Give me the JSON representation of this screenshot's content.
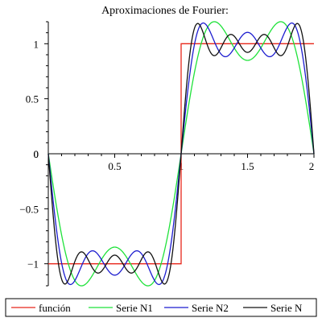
{
  "chart_data": {
    "type": "line",
    "title": "Aproximaciones de Fourier:",
    "xlabel": "",
    "ylabel": "",
    "xlim": [
      0,
      2
    ],
    "ylim": [
      -1.2,
      1.2
    ],
    "x_ticks": [
      {
        "value": 0.5,
        "label": "0.5"
      },
      {
        "value": 1,
        "label": "1"
      },
      {
        "value": 1.5,
        "label": "1.5"
      },
      {
        "value": 2,
        "label": "2"
      }
    ],
    "y_ticks": [
      {
        "value": 1,
        "label": "1"
      },
      {
        "value": 0.5,
        "label": "0.5"
      },
      {
        "value": 0,
        "label": "0"
      },
      {
        "value": -0.5,
        "label": "−0.5"
      },
      {
        "value": -1,
        "label": "−1"
      }
    ],
    "x_origin_label": "0",
    "grid": false,
    "legend_position": "bottom",
    "series": [
      {
        "name": "función",
        "color": "#e8261a",
        "kind": "square_wave",
        "period": 2
      },
      {
        "name": "Serie N1",
        "color": "#1fe23a",
        "kind": "fourier_square",
        "harmonics": [
          1,
          3
        ]
      },
      {
        "name": "Serie N2",
        "color": "#1c1ccf",
        "kind": "fourier_square",
        "harmonics": [
          1,
          3,
          5
        ]
      },
      {
        "name": "Serie N",
        "color": "#111111",
        "kind": "fourier_square",
        "harmonics": [
          1,
          3,
          5,
          7
        ]
      }
    ]
  }
}
